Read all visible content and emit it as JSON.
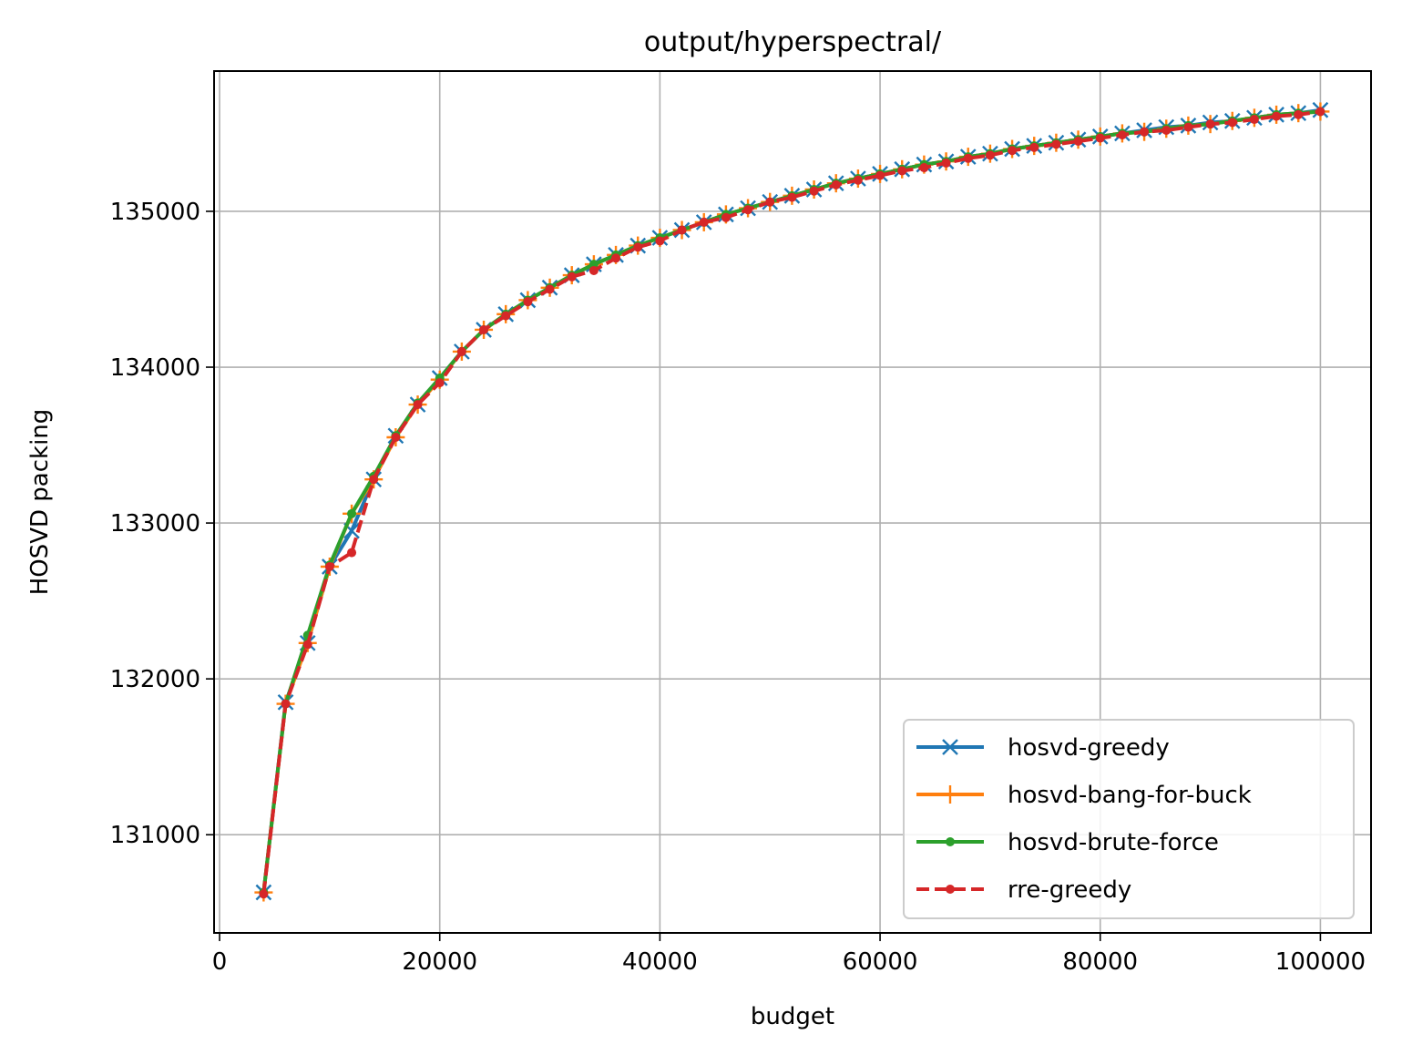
{
  "chart_data": {
    "type": "line",
    "title": "output/hyperspectral/",
    "xlabel": "budget",
    "ylabel": "HOSVD packing",
    "xlim": [
      -500,
      104600
    ],
    "ylim": [
      130370,
      135900
    ],
    "xticks": [
      0,
      20000,
      40000,
      60000,
      80000,
      100000
    ],
    "yticks": [
      131000,
      132000,
      133000,
      134000,
      135000
    ],
    "grid": true,
    "legend_position": "lower right",
    "x": [
      4000,
      6000,
      8000,
      10000,
      12000,
      14000,
      16000,
      18000,
      20000,
      22000,
      24000,
      26000,
      28000,
      30000,
      32000,
      34000,
      36000,
      38000,
      40000,
      42000,
      44000,
      46000,
      48000,
      50000,
      52000,
      54000,
      56000,
      58000,
      60000,
      62000,
      64000,
      66000,
      68000,
      70000,
      72000,
      74000,
      76000,
      78000,
      80000,
      82000,
      84000,
      86000,
      88000,
      90000,
      92000,
      94000,
      96000,
      98000,
      100000
    ],
    "series": [
      {
        "name": "hosvd-greedy",
        "color": "#1f77b4",
        "marker": "x",
        "linestyle": "solid",
        "values": [
          130630,
          131850,
          132230,
          132720,
          132950,
          133280,
          133560,
          133760,
          133930,
          134100,
          134240,
          134340,
          134430,
          134510,
          134590,
          134660,
          134720,
          134780,
          134830,
          134880,
          134930,
          134980,
          135020,
          135060,
          135100,
          135140,
          135180,
          135210,
          135240,
          135270,
          135300,
          135320,
          135350,
          135370,
          135400,
          135420,
          135440,
          135460,
          135480,
          135500,
          135520,
          135540,
          135550,
          135570,
          135580,
          135600,
          135620,
          135630,
          135650
        ]
      },
      {
        "name": "hosvd-bang-for-buck",
        "color": "#ff7f0e",
        "marker": "+",
        "linestyle": "solid",
        "values": [
          130630,
          131840,
          132230,
          132720,
          133060,
          133280,
          133550,
          133760,
          133920,
          134100,
          134240,
          134340,
          134430,
          134510,
          134590,
          134660,
          134720,
          134780,
          134830,
          134880,
          134930,
          134980,
          135020,
          135060,
          135100,
          135140,
          135180,
          135210,
          135240,
          135270,
          135300,
          135320,
          135350,
          135370,
          135400,
          135420,
          135440,
          135460,
          135480,
          135500,
          135510,
          135530,
          135550,
          135560,
          135580,
          135600,
          135620,
          135630,
          135640
        ]
      },
      {
        "name": "hosvd-brute-force",
        "color": "#2ca02c",
        "marker": "o",
        "linestyle": "solid",
        "values": [
          130630,
          131840,
          132280,
          132730,
          133060,
          133300,
          133560,
          133770,
          133930,
          134100,
          134240,
          134340,
          134430,
          134510,
          134590,
          134660,
          134720,
          134780,
          134830,
          134880,
          134930,
          134980,
          135020,
          135060,
          135100,
          135140,
          135180,
          135210,
          135240,
          135270,
          135300,
          135320,
          135350,
          135370,
          135400,
          135420,
          135440,
          135460,
          135480,
          135500,
          135510,
          135530,
          135550,
          135560,
          135580,
          135600,
          135620,
          135630,
          135640
        ]
      },
      {
        "name": "rre-greedy",
        "color": "#d62728",
        "marker": "o",
        "linestyle": "dashed",
        "values": [
          130620,
          131840,
          132220,
          132720,
          132810,
          133280,
          133550,
          133760,
          133900,
          134100,
          134240,
          134330,
          134420,
          134500,
          134580,
          134620,
          134700,
          134770,
          134810,
          134880,
          134930,
          134960,
          135010,
          135060,
          135090,
          135130,
          135170,
          135200,
          135230,
          135260,
          135280,
          135310,
          135340,
          135360,
          135390,
          135410,
          135430,
          135450,
          135470,
          135490,
          135510,
          135520,
          135540,
          135560,
          135570,
          135590,
          135610,
          135620,
          135640
        ]
      }
    ]
  }
}
